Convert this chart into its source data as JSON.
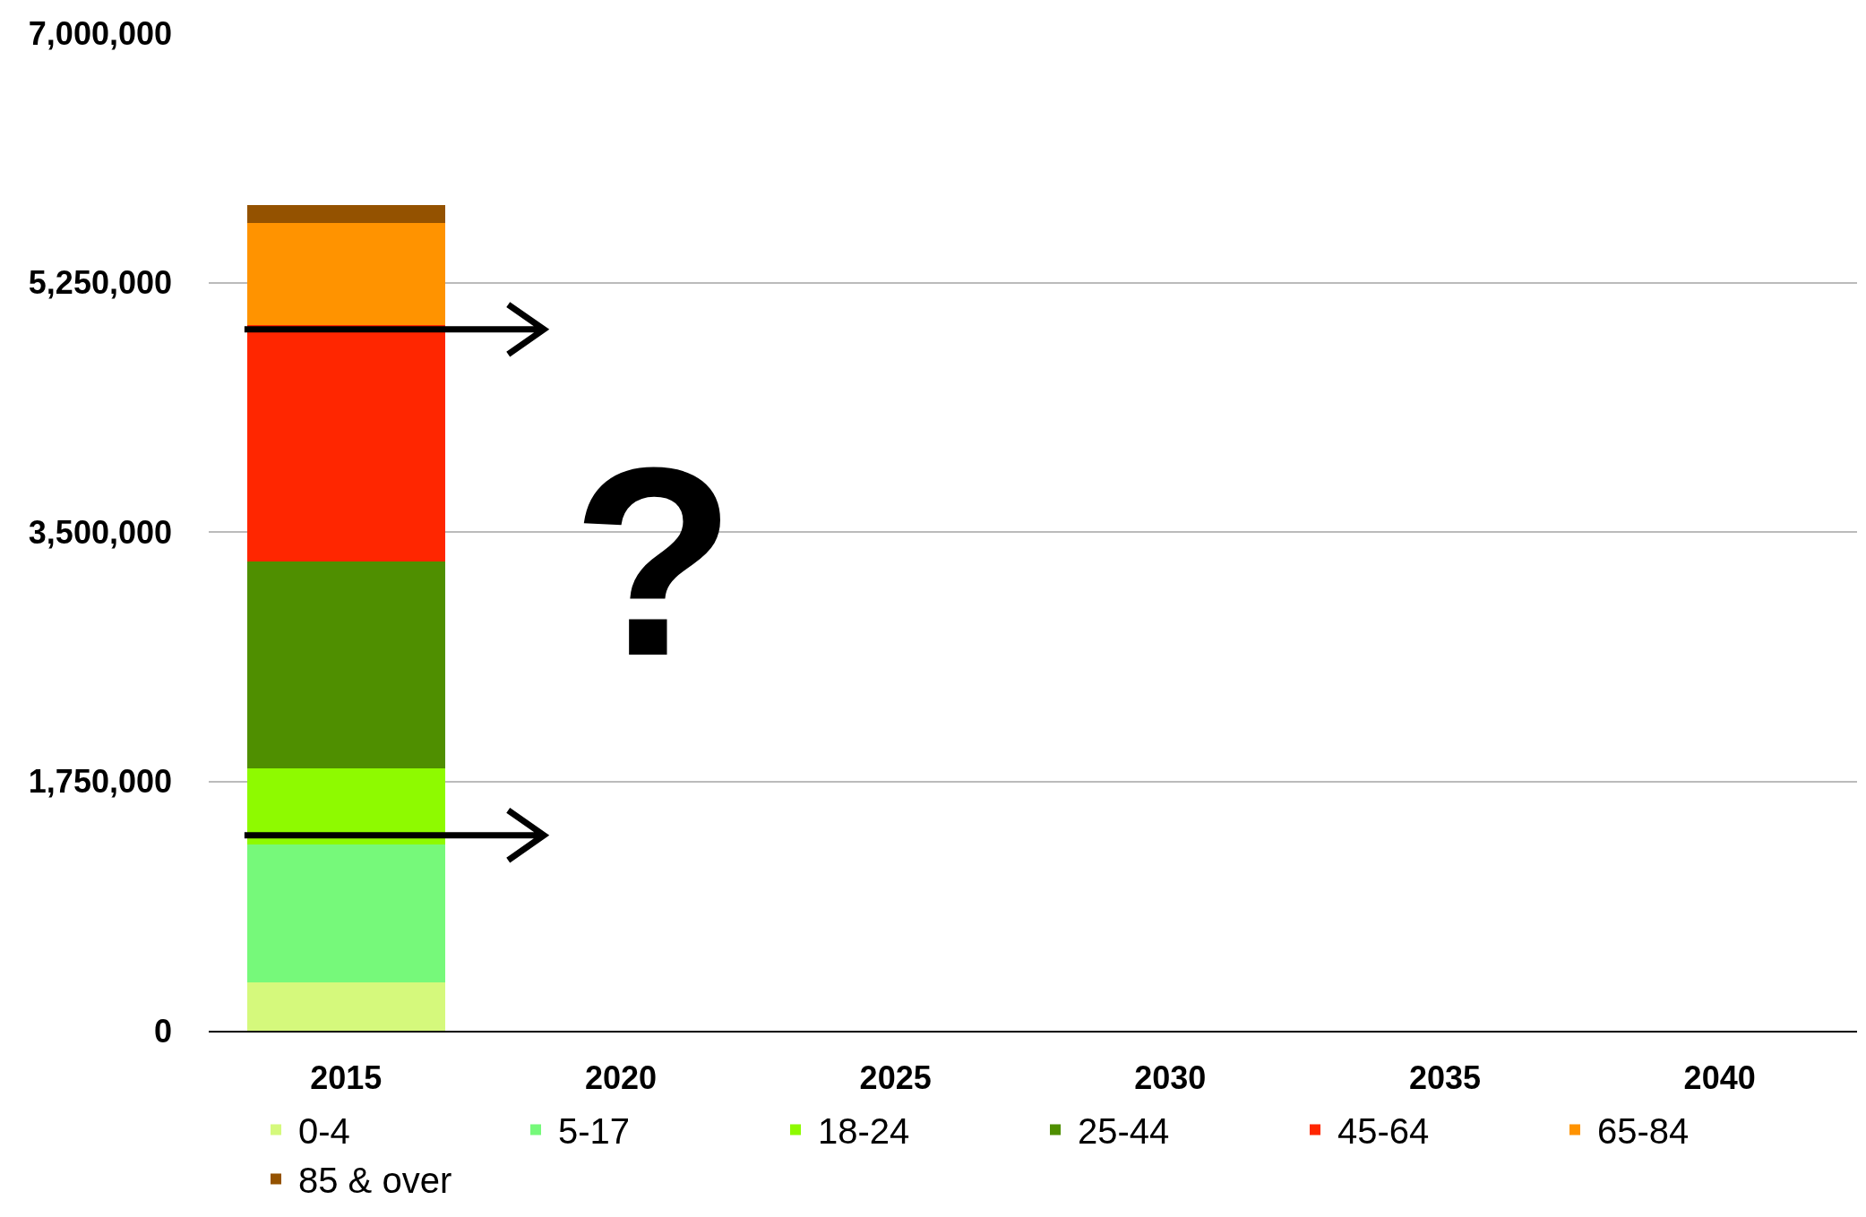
{
  "chart_data": {
    "type": "bar",
    "stacked": true,
    "categories": [
      "2015",
      "2020",
      "2025",
      "2030",
      "2035",
      "2040"
    ],
    "series": [
      {
        "name": "0-4",
        "color": "#d5f97c",
        "values": [
          340000,
          null,
          null,
          null,
          null,
          null
        ]
      },
      {
        "name": "5-17",
        "color": "#76f97a",
        "values": [
          970000,
          null,
          null,
          null,
          null,
          null
        ]
      },
      {
        "name": "18-24",
        "color": "#8efa00",
        "values": [
          530000,
          null,
          null,
          null,
          null,
          null
        ]
      },
      {
        "name": "25-44",
        "color": "#4f8f00",
        "values": [
          1450000,
          null,
          null,
          null,
          null,
          null
        ]
      },
      {
        "name": "45-64",
        "color": "#ff2600",
        "values": [
          1660000,
          null,
          null,
          null,
          null,
          null
        ]
      },
      {
        "name": "65-84",
        "color": "#ff9300",
        "values": [
          720000,
          null,
          null,
          null,
          null,
          null
        ]
      },
      {
        "name": "85 & over",
        "color": "#945200",
        "values": [
          125000,
          null,
          null,
          null,
          null,
          null
        ]
      }
    ],
    "ylim": [
      0,
      7000000
    ],
    "yticks": [
      {
        "value": 0,
        "label": "0"
      },
      {
        "value": 1750000,
        "label": "1,750,000"
      },
      {
        "value": 3500000,
        "label": "3,500,000"
      },
      {
        "value": 5250000,
        "label": "5,250,000"
      },
      {
        "value": 7000000,
        "label": "7,000,000"
      }
    ],
    "grid": "y",
    "legend": "bottom",
    "annotations": [
      "?"
    ]
  }
}
